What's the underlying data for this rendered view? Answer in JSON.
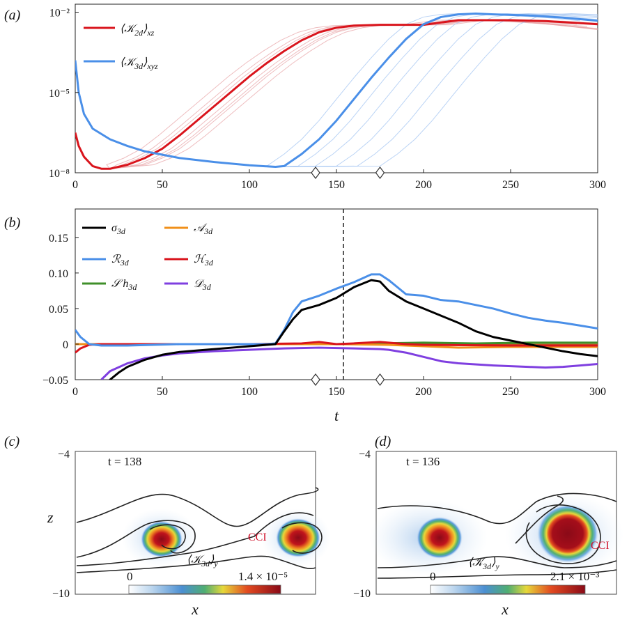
{
  "chart_data": [
    {
      "panel_label": "(a)",
      "type": "line",
      "yscale": "log",
      "xlim": [
        0,
        300
      ],
      "ylim_log10": [
        -8,
        -1.7
      ],
      "x_ticks": [
        "0",
        "50",
        "100",
        "150",
        "200",
        "250",
        "300"
      ],
      "y_ticks": [
        "10⁻⁸",
        "10⁻⁵",
        "10⁻²"
      ],
      "diamond_markers_x": [
        138,
        175
      ],
      "series": [
        {
          "name": "⟨𝒦 2d⟩xz",
          "label_main": "⟨𝒦",
          "label_sub": "2d",
          "label_close": "⟩",
          "label_sub2": "xz",
          "color": "#d9141c",
          "x": [
            0,
            2,
            5,
            10,
            15,
            20,
            30,
            40,
            50,
            60,
            70,
            80,
            90,
            100,
            110,
            120,
            130,
            140,
            150,
            160,
            175,
            200,
            220,
            235,
            250,
            270,
            300
          ],
          "log10_y": [
            -6.5,
            -7.0,
            -7.4,
            -7.75,
            -7.85,
            -7.85,
            -7.7,
            -7.45,
            -7.1,
            -6.6,
            -6.05,
            -5.5,
            -4.95,
            -4.4,
            -3.9,
            -3.45,
            -3.05,
            -2.75,
            -2.58,
            -2.5,
            -2.47,
            -2.47,
            -2.3,
            -2.3,
            -2.3,
            -2.33,
            -2.45
          ]
        },
        {
          "name": "⟨𝒦 3d⟩xyz",
          "label_main": "⟨𝒦",
          "label_sub": "3d",
          "label_close": "⟩",
          "label_sub2": "xyz",
          "color": "#4a8fe8",
          "x": [
            0,
            2,
            5,
            10,
            20,
            30,
            40,
            60,
            80,
            100,
            110,
            115,
            120,
            130,
            140,
            150,
            160,
            170,
            180,
            190,
            200,
            210,
            220,
            230,
            240,
            260,
            280,
            300
          ],
          "log10_y": [
            -3.8,
            -5.0,
            -5.8,
            -6.35,
            -6.75,
            -7.0,
            -7.2,
            -7.45,
            -7.6,
            -7.72,
            -7.76,
            -7.78,
            -7.75,
            -7.3,
            -6.75,
            -6.05,
            -5.25,
            -4.45,
            -3.7,
            -3.0,
            -2.45,
            -2.18,
            -2.08,
            -2.05,
            -2.08,
            -2.12,
            -2.2,
            -2.32
          ]
        }
      ]
    },
    {
      "panel_label": "(b)",
      "type": "line",
      "xlabel": "t",
      "xlim": [
        0,
        300
      ],
      "ylim": [
        -0.05,
        0.19
      ],
      "x_ticks": [
        "0",
        "50",
        "100",
        "150",
        "200",
        "250",
        "300"
      ],
      "y_ticks": [
        "−0.05",
        "0",
        "0.05",
        "0.10",
        "0.15"
      ],
      "dashed_vline_x": 154,
      "diamond_markers_x": [
        138,
        175
      ],
      "series": [
        {
          "name": "σ 3d",
          "label_main": "σ",
          "label_sub": "3d",
          "color": "#000000",
          "x": [
            17,
            20,
            25,
            30,
            40,
            50,
            60,
            70,
            80,
            90,
            100,
            110,
            115,
            120,
            125,
            130,
            140,
            150,
            160,
            170,
            175,
            180,
            190,
            200,
            210,
            220,
            230,
            240,
            250,
            260,
            270,
            280,
            290,
            300
          ],
          "y": [
            -0.06,
            -0.05,
            -0.04,
            -0.032,
            -0.022,
            -0.015,
            -0.011,
            -0.009,
            -0.007,
            -0.005,
            -0.003,
            -0.001,
            0.0,
            0.018,
            0.035,
            0.048,
            0.055,
            0.065,
            0.08,
            0.09,
            0.088,
            0.075,
            0.06,
            0.05,
            0.04,
            0.03,
            0.018,
            0.01,
            0.005,
            0.0,
            -0.005,
            -0.01,
            -0.014,
            -0.017
          ]
        },
        {
          "name": "𝒜 3d",
          "label_main": "𝒜",
          "label_sub": "3d",
          "color": "#f0901a",
          "x": [
            0,
            50,
            100,
            150,
            180,
            200,
            220,
            250,
            300
          ],
          "y": [
            0.0,
            0.0,
            0.0,
            0.0,
            -0.001,
            -0.003,
            -0.005,
            -0.004,
            -0.004
          ]
        },
        {
          "name": "ℛ 3d",
          "label_main": "ℛ",
          "label_sub": "3d",
          "color": "#4a8fe8",
          "x": [
            0,
            3,
            8,
            15,
            30,
            60,
            90,
            110,
            115,
            120,
            125,
            130,
            140,
            150,
            160,
            170,
            175,
            180,
            190,
            200,
            210,
            220,
            230,
            240,
            250,
            260,
            270,
            280,
            290,
            300
          ],
          "y": [
            0.02,
            0.01,
            0.0,
            -0.002,
            -0.002,
            0.0,
            0.0,
            0.0,
            0.001,
            0.02,
            0.045,
            0.06,
            0.068,
            0.078,
            0.087,
            0.098,
            0.098,
            0.09,
            0.07,
            0.068,
            0.062,
            0.06,
            0.055,
            0.05,
            0.043,
            0.037,
            0.033,
            0.03,
            0.026,
            0.022
          ]
        },
        {
          "name": "ℋ 3d",
          "label_main": "ℋ",
          "label_sub": "3d",
          "color": "#d9141c",
          "x": [
            0,
            3,
            8,
            15,
            30,
            60,
            100,
            130,
            140,
            150,
            160,
            175,
            190,
            200,
            250,
            300
          ],
          "y": [
            -0.012,
            -0.006,
            -0.001,
            0.0,
            0.0,
            0.0,
            0.0,
            0.001,
            0.003,
            0.0,
            0.001,
            0.003,
            0.0,
            -0.001,
            -0.002,
            -0.002
          ]
        },
        {
          "name": "𝒮 h 3d",
          "label_main": "𝒮 h",
          "label_sub": "3d",
          "color": "#3f8f2a",
          "x": [
            0,
            50,
            100,
            150,
            200,
            230,
            260,
            300
          ],
          "y": [
            0.0,
            0.0,
            0.0,
            0.0,
            0.002,
            0.001,
            0.002,
            0.002
          ]
        },
        {
          "name": "𝒟 3d",
          "label_main": "𝒟",
          "label_sub": "3d",
          "color": "#7f3fe0",
          "x": [
            15,
            20,
            30,
            40,
            50,
            60,
            80,
            100,
            120,
            140,
            160,
            175,
            180,
            190,
            200,
            210,
            220,
            240,
            260,
            270,
            280,
            290,
            300
          ],
          "y": [
            -0.05,
            -0.038,
            -0.027,
            -0.02,
            -0.016,
            -0.013,
            -0.01,
            -0.008,
            -0.006,
            -0.005,
            -0.006,
            -0.007,
            -0.008,
            -0.012,
            -0.018,
            -0.024,
            -0.027,
            -0.03,
            -0.032,
            -0.033,
            -0.032,
            -0.03,
            -0.028
          ]
        }
      ]
    },
    {
      "panel_label": "(c)",
      "type": "heatmap",
      "time_label": "t = 138",
      "xlabel": "x",
      "ylabel": "z",
      "y_ticks": [
        "−4",
        "−10"
      ],
      "colorbar_min": "0",
      "colorbar_max": "1.4 × 10⁻⁵",
      "colorbar_label_main": "⟨𝒦",
      "colorbar_label_sub": "3d",
      "colorbar_label_close": "⟩",
      "colorbar_label_sub2": "y",
      "annotation": "CCI"
    },
    {
      "panel_label": "(d)",
      "type": "heatmap",
      "time_label": "t = 136",
      "xlabel": "x",
      "y_ticks": [
        "−4",
        "−10"
      ],
      "colorbar_min": "0",
      "colorbar_max": "2.1 × 10⁻³",
      "colorbar_label_main": "⟨𝒦",
      "colorbar_label_sub": "3d",
      "colorbar_label_close": "⟩",
      "colorbar_label_sub2": "y",
      "annotation": "CCI"
    }
  ]
}
